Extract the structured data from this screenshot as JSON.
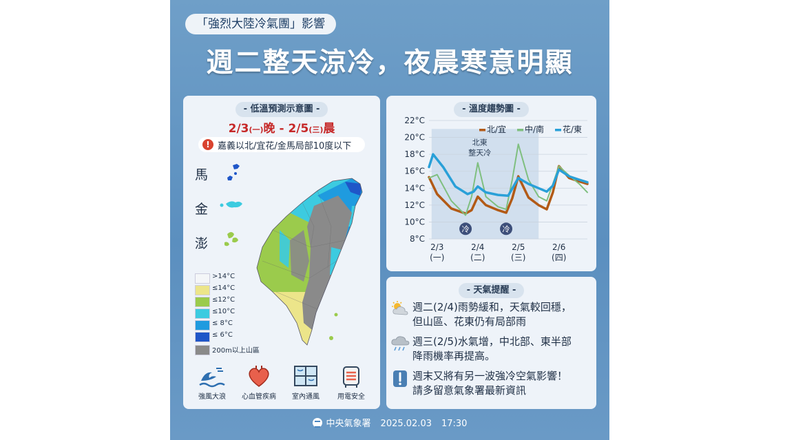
{
  "header": {
    "tag": "「強烈大陸冷氣團」影響",
    "headline": "週二整天涼冷，夜晨寒意明顯"
  },
  "map_panel": {
    "title": "低溫預測示意圖",
    "date_start": "2/3",
    "date_start_day": "(一)",
    "date_start_suffix": "晚",
    "date_sep": " - ",
    "date_end": "2/5",
    "date_end_day": "(三)",
    "date_end_suffix": "晨",
    "warning": "嘉義以北/宜花/金馬局部10度以下",
    "islands": [
      {
        "label": "馬",
        "color": "#1f56c8"
      },
      {
        "label": "金",
        "color": "#3ccbe0"
      },
      {
        "label": "澎",
        "color": "#8cc63f"
      }
    ],
    "legend": [
      {
        "label": ">14°C",
        "color": "#f4f6f8"
      },
      {
        "label": "≤14°C",
        "color": "#ece58a"
      },
      {
        "label": "≤12°C",
        "color": "#9bcb4c"
      },
      {
        "label": "≤10°C",
        "color": "#3ccbe0"
      },
      {
        "label": "≤ 8°C",
        "color": "#1f9bdf"
      },
      {
        "label": "≤ 6°C",
        "color": "#1f56c8"
      },
      {
        "label": "200m以上山區",
        "color": "#8a8a8a"
      }
    ],
    "icons": [
      {
        "label": "強風大浪",
        "icon": "waves-icon"
      },
      {
        "label": "心血管疾病",
        "icon": "heart-icon"
      },
      {
        "label": "室內通風",
        "icon": "window-icon"
      },
      {
        "label": "用電安全",
        "icon": "heater-icon"
      }
    ]
  },
  "chart_panel": {
    "title": "溫度趨勢圖",
    "annotation_line1": "北東",
    "annotation_line2": "整天冷",
    "cold_marker": "冷"
  },
  "chart_data": {
    "type": "line",
    "title": "溫度趨勢圖",
    "xlabel": "",
    "ylabel": "",
    "ylim": [
      8,
      22
    ],
    "yticks": [
      "8°C",
      "10°C",
      "12°C",
      "14°C",
      "16°C",
      "18°C",
      "20°C",
      "22°C"
    ],
    "x_ticks": [
      {
        "date": "2/3",
        "day": "(一)",
        "x": 0
      },
      {
        "date": "2/4",
        "day": "(二)",
        "x": 1
      },
      {
        "date": "2/5",
        "day": "(三)",
        "x": 2
      },
      {
        "date": "2/6",
        "day": "(四)",
        "x": 3
      }
    ],
    "x_range": [
      0,
      3.7
    ],
    "shaded_range": [
      0,
      2.5
    ],
    "cold_markers": [
      0.7,
      1.7
    ],
    "legend_position": "top-right",
    "series": [
      {
        "name": "北/宜",
        "color": "#b25a16",
        "points": [
          [
            -0.2,
            15.3
          ],
          [
            0.0,
            13.3
          ],
          [
            0.35,
            11.6
          ],
          [
            0.7,
            11.0
          ],
          [
            0.85,
            11.4
          ],
          [
            1.0,
            13.0
          ],
          [
            1.2,
            12.0
          ],
          [
            1.5,
            11.4
          ],
          [
            1.7,
            11.1
          ],
          [
            1.85,
            12.8
          ],
          [
            2.0,
            15.4
          ],
          [
            2.25,
            12.9
          ],
          [
            2.5,
            12.0
          ],
          [
            2.7,
            11.5
          ],
          [
            2.85,
            13.5
          ],
          [
            3.0,
            16.6
          ],
          [
            3.25,
            15.2
          ],
          [
            3.5,
            14.8
          ],
          [
            3.7,
            14.5
          ]
        ]
      },
      {
        "name": "中/南",
        "color": "#7fbf7f",
        "points": [
          [
            -0.2,
            15.2
          ],
          [
            0.0,
            15.6
          ],
          [
            0.35,
            12.5
          ],
          [
            0.7,
            10.8
          ],
          [
            0.85,
            13.0
          ],
          [
            1.0,
            17.0
          ],
          [
            1.2,
            13.0
          ],
          [
            1.5,
            11.8
          ],
          [
            1.7,
            11.5
          ],
          [
            1.85,
            15.0
          ],
          [
            2.0,
            19.2
          ],
          [
            2.25,
            15.0
          ],
          [
            2.5,
            13.0
          ],
          [
            2.7,
            12.5
          ],
          [
            2.85,
            14.5
          ],
          [
            3.0,
            16.6
          ],
          [
            3.25,
            15.5
          ],
          [
            3.5,
            14.5
          ],
          [
            3.7,
            13.5
          ]
        ]
      },
      {
        "name": "花/東",
        "color": "#29a0d8",
        "points": [
          [
            -0.2,
            16.5
          ],
          [
            -0.1,
            18.0
          ],
          [
            0.15,
            16.5
          ],
          [
            0.45,
            14.2
          ],
          [
            0.75,
            13.3
          ],
          [
            0.9,
            13.6
          ],
          [
            1.0,
            14.2
          ],
          [
            1.2,
            13.5
          ],
          [
            1.5,
            13.2
          ],
          [
            1.75,
            13.1
          ],
          [
            2.0,
            15.2
          ],
          [
            2.25,
            14.5
          ],
          [
            2.5,
            14.0
          ],
          [
            2.7,
            13.6
          ],
          [
            2.85,
            14.3
          ],
          [
            3.0,
            16.2
          ],
          [
            3.25,
            15.4
          ],
          [
            3.5,
            15.0
          ],
          [
            3.7,
            14.7
          ]
        ]
      }
    ]
  },
  "tips_panel": {
    "title": "天氣提醒",
    "tips": [
      {
        "icon": "sun-cloud-icon",
        "line1": "週二(2/4)雨勢緩和，天氣較回穩，",
        "line2": "但山區、花東仍有局部雨"
      },
      {
        "icon": "rain-cloud-icon",
        "line1": "週三(2/5)水氣增，中北部、東半部",
        "line2": "降雨機率再提高。"
      },
      {
        "icon": "exclamation-icon",
        "line1": "週末又將有另一波強冷空氣影響！",
        "line2": "請多留意氣象署最新資訊"
      }
    ]
  },
  "footer": {
    "agency": "中央氣象署",
    "date": "2025.02.03",
    "time": "17:30"
  }
}
